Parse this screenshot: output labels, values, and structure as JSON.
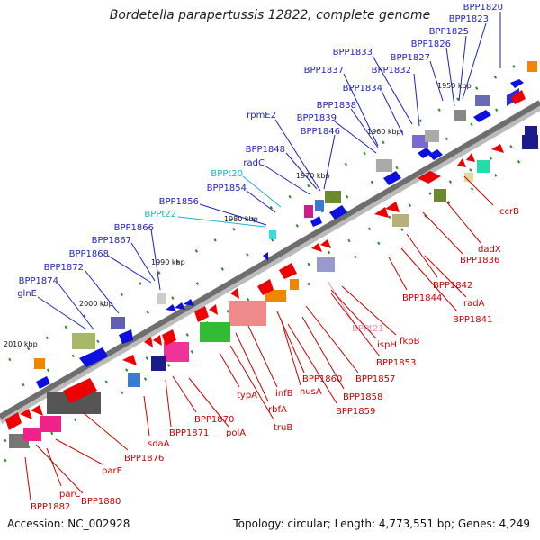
{
  "title": "Bordetella parapertussis 12822, complete genome",
  "footer": {
    "accession": "Accession: NC_002928",
    "summary": "Topology: circular; Length: 4,773,551 bp; Genes: 4,249"
  },
  "colors": {
    "label_blue": "#1f1fbf",
    "label_red": "#cc0000",
    "label_cyan": "#17b3d6",
    "label_pink": "#f08fb8",
    "backbone": "#777777",
    "dots": "#2a8a2a"
  },
  "ticks": [
    "1950 kbp",
    "1960 kbp",
    "1970 kbp",
    "1980 kbp",
    "1990 kbp",
    "2000 kbp",
    "2010 kbp"
  ],
  "labels_top": [
    "BPP1820",
    "BPP1823",
    "BPP1825",
    "BPP1826",
    "BPP1827",
    "BPP1832",
    "BPP1833",
    "BPP1834",
    "BPP1837",
    "BPP1838",
    "BPP1839",
    "BPP1846",
    "rpmE2",
    "radC",
    "BPP1848",
    "BPPt20",
    "BPP1854",
    "BPP1856",
    "BPPt22",
    "BPP1866",
    "BPP1867",
    "BPP1868",
    "BPP1872",
    "BPP1874",
    "glnE"
  ],
  "labels_bottom": [
    "ccrB",
    "dadX",
    "BPP1836",
    "BPP1842",
    "radA",
    "BPP1844",
    "BPP1841",
    "fkpB",
    "BPPt21",
    "ispH",
    "BPP1853",
    "BPP1857",
    "BPP1860",
    "BPP1858",
    "nusA",
    "BPP1859",
    "infB",
    "rbfA",
    "typA",
    "truB",
    "BPP1870",
    "polA",
    "BPP1871",
    "sdaA",
    "BPP1876",
    "parE",
    "parC",
    "BPP1880",
    "BPP1882"
  ]
}
